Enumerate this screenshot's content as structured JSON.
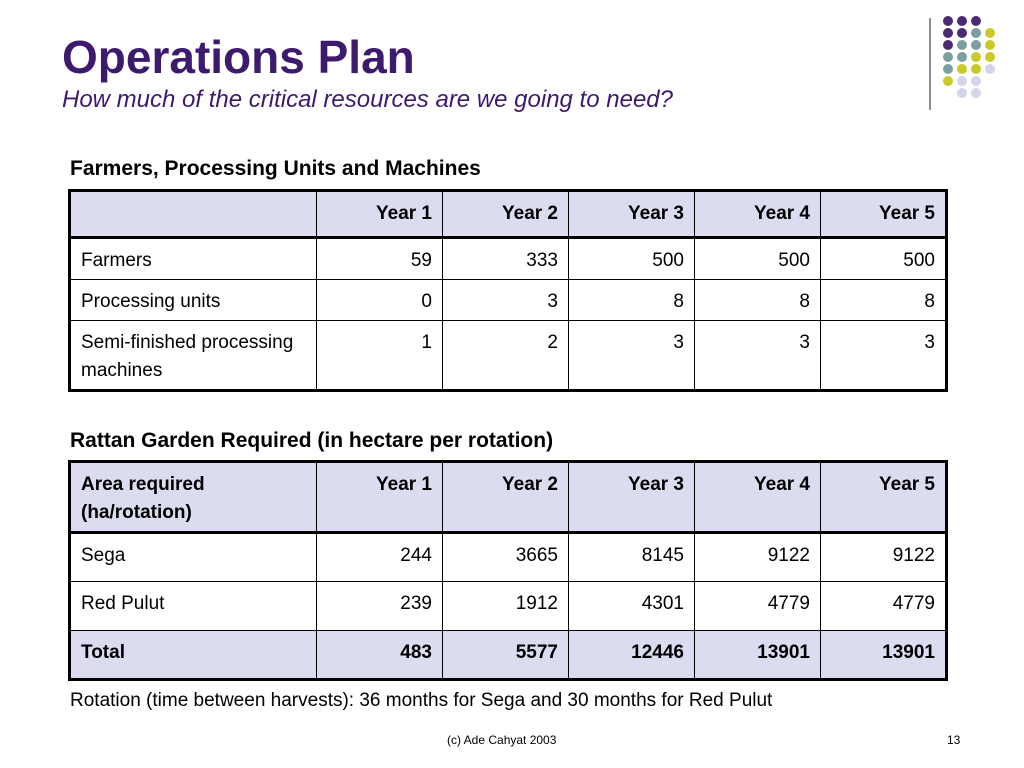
{
  "slide": {
    "title": "Operations Plan",
    "subtitle": "How much of the critical resources are we going to need?"
  },
  "table1": {
    "caption": "Farmers, Processing Units and Machines",
    "headers": [
      "",
      "Year 1",
      "Year 2",
      "Year 3",
      "Year 4",
      "Year 5"
    ],
    "rows": [
      [
        "Farmers",
        "59",
        "333",
        "500",
        "500",
        "500"
      ],
      [
        "Processing units",
        "0",
        "3",
        "8",
        "8",
        "8"
      ],
      [
        "Semi-finished processing machines",
        "1",
        "2",
        "3",
        "3",
        "3"
      ]
    ]
  },
  "table2": {
    "caption": "Rattan Garden Required (in hectare per rotation)",
    "headers": [
      "Area required (ha/rotation)",
      "Year 1",
      "Year 2",
      "Year 3",
      "Year 4",
      "Year 5"
    ],
    "rows": [
      [
        "Sega",
        "244",
        "3665",
        "8145",
        "9122",
        "9122"
      ],
      [
        "Red Pulut",
        "239",
        "1912",
        "4301",
        "4779",
        "4779"
      ],
      [
        "Total",
        "483",
        "5577",
        "12446",
        "13901",
        "13901"
      ]
    ]
  },
  "note": "Rotation (time between harvests): 36 months for Sega and 30 months for Red Pulut",
  "footer": {
    "copyright": "(c) Ade Cahyat 2003",
    "page_number": "13"
  },
  "decoration": {
    "dot_colors": {
      "purple": "#4b2a74",
      "teal": "#7b9ea0",
      "yellow": "#c9c92a",
      "lavender": "#d4d4ea"
    }
  }
}
